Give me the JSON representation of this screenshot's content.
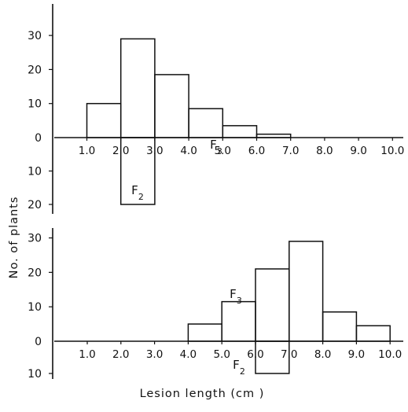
{
  "figure": {
    "ylabel": "No. of plants",
    "xlabel": "Lesion length (cm )"
  },
  "chart_data": [
    {
      "type": "bar",
      "panel": "top",
      "bins": [
        1,
        2,
        3,
        4,
        5,
        6,
        7,
        8,
        9,
        10
      ],
      "x_tick_labels": [
        "1.0",
        "2.0",
        "3.0",
        "4.0",
        "5.0",
        "6.0",
        "7.0",
        "8.0",
        "9.0",
        "10.0"
      ],
      "y_up_ticks": [
        "0",
        "10",
        "20",
        "30"
      ],
      "y_down_ticks": [
        "10",
        "20"
      ],
      "ylim_up": [
        0,
        30
      ],
      "ylim_down": [
        0,
        20
      ],
      "series": [
        {
          "name": "F3",
          "direction": "up",
          "bars": [
            {
              "x0": 1.0,
              "x1": 2.0,
              "value": 10
            },
            {
              "x0": 2.0,
              "x1": 3.0,
              "value": 29
            },
            {
              "x0": 3.0,
              "x1": 4.0,
              "value": 18.5
            },
            {
              "x0": 4.0,
              "x1": 5.0,
              "value": 8.5
            },
            {
              "x0": 5.0,
              "x1": 6.0,
              "value": 3.5
            },
            {
              "x0": 6.0,
              "x1": 7.0,
              "value": 1
            }
          ]
        },
        {
          "name": "F2",
          "direction": "down",
          "bars": [
            {
              "x0": 2.0,
              "x1": 3.0,
              "value": 20
            }
          ]
        }
      ]
    },
    {
      "type": "bar",
      "panel": "bottom",
      "bins": [
        1,
        2,
        3,
        4,
        5,
        6,
        7,
        8,
        9,
        10
      ],
      "x_tick_labels": [
        "1.0",
        "2.0",
        "3.0",
        "4.0",
        "5.0",
        "6.0",
        "7.0",
        "8.0",
        "9.0",
        "10.0"
      ],
      "y_up_ticks": [
        "0",
        "10",
        "20",
        "30"
      ],
      "y_down_ticks": [
        "10"
      ],
      "ylim_up": [
        0,
        30
      ],
      "ylim_down": [
        0,
        10
      ],
      "series": [
        {
          "name": "F3",
          "direction": "up",
          "bars": [
            {
              "x0": 4.0,
              "x1": 5.0,
              "value": 5
            },
            {
              "x0": 5.0,
              "x1": 6.0,
              "value": 11.5
            },
            {
              "x0": 6.0,
              "x1": 7.0,
              "value": 21
            },
            {
              "x0": 7.0,
              "x1": 8.0,
              "value": 29
            },
            {
              "x0": 8.0,
              "x1": 9.0,
              "value": 8.5
            },
            {
              "x0": 9.0,
              "x1": 10.0,
              "value": 4.5
            }
          ]
        },
        {
          "name": "F2",
          "direction": "down",
          "bars": [
            {
              "x0": 6.0,
              "x1": 7.0,
              "value": 10
            }
          ]
        }
      ]
    }
  ]
}
